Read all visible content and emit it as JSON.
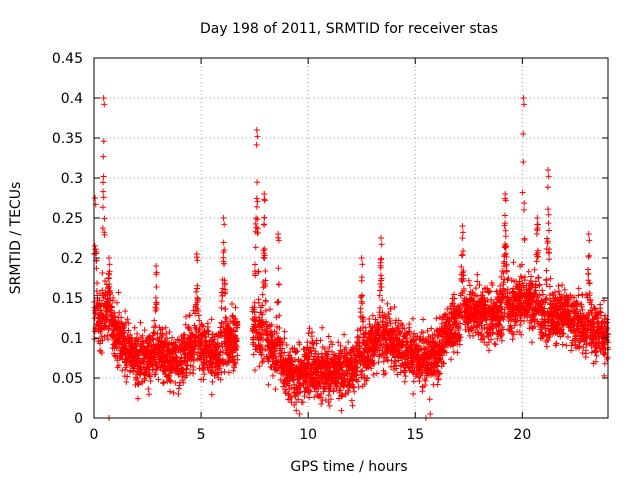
{
  "chart_data": {
    "type": "scatter",
    "title": "Day 198 of 2011, SRMTID for receiver stas",
    "xlabel": "GPS time / hours",
    "ylabel": "SRMTID / TECUs",
    "xlim": [
      0,
      24
    ],
    "ylim": [
      0,
      0.45
    ],
    "xticks": [
      0,
      5,
      10,
      15,
      20
    ],
    "yticks": [
      0,
      0.05,
      0.1,
      0.15,
      0.2,
      0.25,
      0.3,
      0.35,
      0.4,
      0.45
    ],
    "xtick_labels": [
      "0",
      "5",
      "10",
      "15",
      "20"
    ],
    "ytick_labels": [
      "0",
      "0.05",
      "0.1",
      "0.15",
      "0.2",
      "0.25",
      "0.3",
      "0.35",
      "0.4",
      "0.45"
    ],
    "grid": true,
    "marker": "+",
    "color": "#ff0000",
    "gap_hours": [
      6.7,
      7.4
    ],
    "sampling_interval_hours": 0.008,
    "baseline": [
      [
        0,
        0.12
      ],
      [
        0.5,
        0.13
      ],
      [
        1,
        0.11
      ],
      [
        1.5,
        0.09
      ],
      [
        2,
        0.07
      ],
      [
        2.5,
        0.075
      ],
      [
        3,
        0.085
      ],
      [
        3.5,
        0.07
      ],
      [
        4,
        0.07
      ],
      [
        4.5,
        0.09
      ],
      [
        5,
        0.09
      ],
      [
        5.5,
        0.08
      ],
      [
        6,
        0.08
      ],
      [
        6.5,
        0.1
      ],
      [
        7.4,
        0.11
      ],
      [
        8,
        0.1
      ],
      [
        8.5,
        0.08
      ],
      [
        9,
        0.055
      ],
      [
        9.5,
        0.055
      ],
      [
        10,
        0.065
      ],
      [
        10.5,
        0.06
      ],
      [
        11,
        0.06
      ],
      [
        11.5,
        0.055
      ],
      [
        12,
        0.06
      ],
      [
        12.5,
        0.075
      ],
      [
        13,
        0.09
      ],
      [
        13.5,
        0.1
      ],
      [
        14,
        0.095
      ],
      [
        14.5,
        0.085
      ],
      [
        15,
        0.08
      ],
      [
        15.5,
        0.07
      ],
      [
        16,
        0.08
      ],
      [
        16.5,
        0.11
      ],
      [
        17,
        0.12
      ],
      [
        17.5,
        0.135
      ],
      [
        18,
        0.13
      ],
      [
        18.5,
        0.13
      ],
      [
        19,
        0.135
      ],
      [
        19.5,
        0.14
      ],
      [
        20,
        0.15
      ],
      [
        20.5,
        0.14
      ],
      [
        21,
        0.125
      ],
      [
        21.5,
        0.125
      ],
      [
        22,
        0.13
      ],
      [
        22.5,
        0.12
      ],
      [
        23,
        0.11
      ],
      [
        23.5,
        0.11
      ],
      [
        24,
        0.1
      ]
    ],
    "spread": 0.045,
    "spikes": [
      {
        "x": 0.05,
        "peak": 0.275,
        "width": 0.15
      },
      {
        "x": 0.45,
        "peak": 0.4,
        "width": 0.08
      },
      {
        "x": 0.7,
        "peak": 0.2,
        "width": 0.1
      },
      {
        "x": 2.9,
        "peak": 0.19,
        "width": 0.08
      },
      {
        "x": 4.8,
        "peak": 0.205,
        "width": 0.1
      },
      {
        "x": 6.05,
        "peak": 0.25,
        "width": 0.15
      },
      {
        "x": 7.6,
        "peak": 0.36,
        "width": 0.12
      },
      {
        "x": 7.95,
        "peak": 0.28,
        "width": 0.1
      },
      {
        "x": 8.6,
        "peak": 0.23,
        "width": 0.08
      },
      {
        "x": 12.5,
        "peak": 0.2,
        "width": 0.12
      },
      {
        "x": 13.4,
        "peak": 0.225,
        "width": 0.1
      },
      {
        "x": 17.2,
        "peak": 0.24,
        "width": 0.12
      },
      {
        "x": 19.2,
        "peak": 0.28,
        "width": 0.12
      },
      {
        "x": 20.05,
        "peak": 0.4,
        "width": 0.08
      },
      {
        "x": 20.7,
        "peak": 0.25,
        "width": 0.12
      },
      {
        "x": 21.2,
        "peak": 0.31,
        "width": 0.12
      },
      {
        "x": 23.1,
        "peak": 0.23,
        "width": 0.1
      }
    ],
    "low_points": [
      [
        0.7,
        0.0
      ],
      [
        15.5,
        0.0
      ],
      [
        9.6,
        0.005
      ],
      [
        15.7,
        0.005
      ]
    ]
  }
}
